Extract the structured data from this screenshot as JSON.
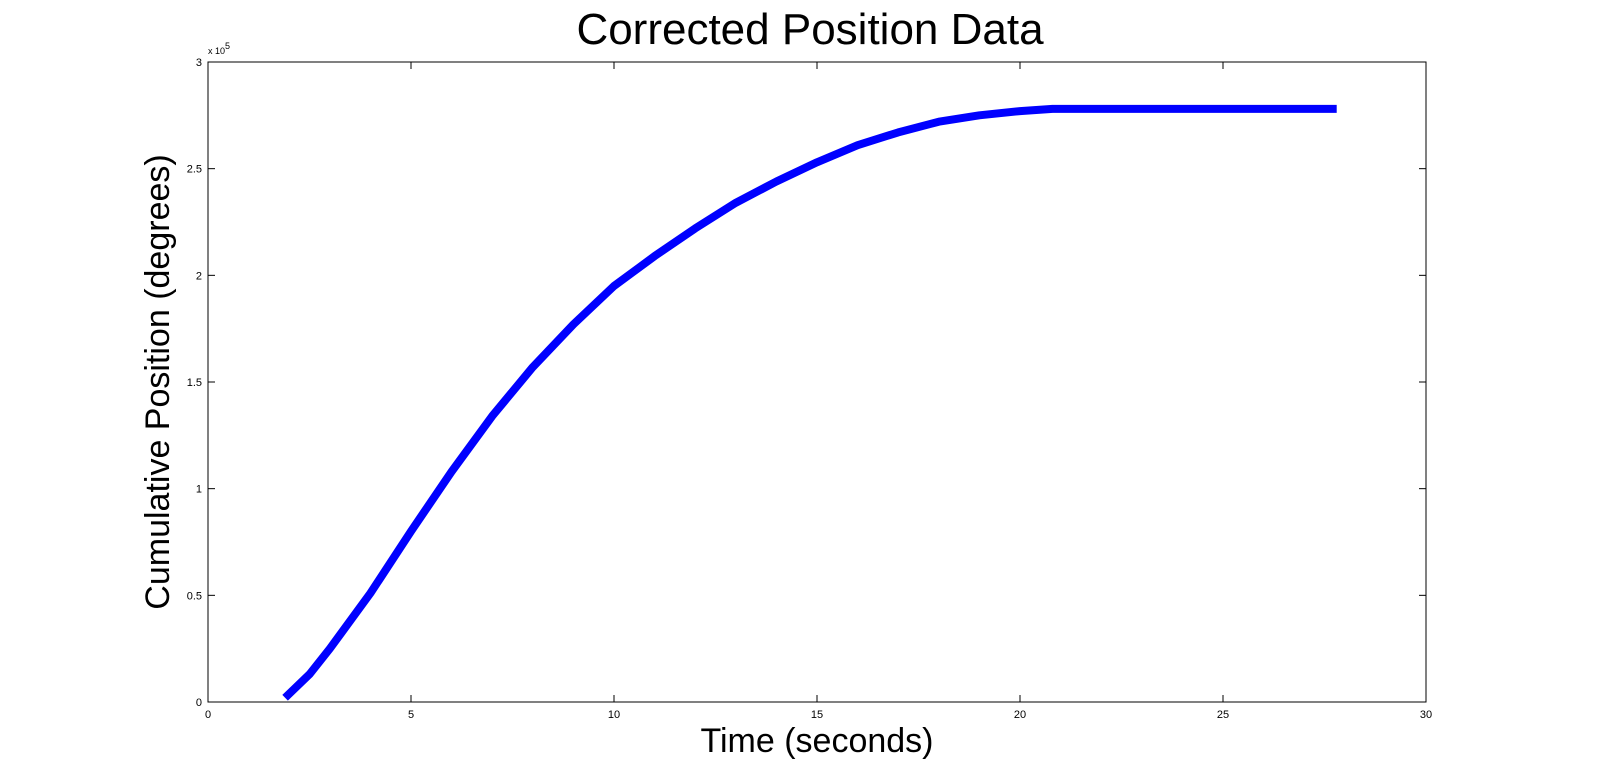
{
  "chart_data": {
    "type": "line",
    "title": "Corrected Position Data",
    "xlabel": "Time (seconds)",
    "ylabel": "Cumulative Position (degrees)",
    "xlim": [
      0,
      30
    ],
    "ylim": [
      0,
      3
    ],
    "y_multiplier_label": "x 10",
    "y_multiplier_exponent": "5",
    "grid": false,
    "x_ticks": [
      "0",
      "5",
      "10",
      "15",
      "20",
      "25",
      "30"
    ],
    "y_ticks": [
      "0",
      "0.5",
      "1",
      "1.5",
      "2",
      "2.5",
      "3"
    ],
    "series": [
      {
        "color": "#0000ff",
        "x": [
          1.9,
          2.5,
          3.0,
          4.0,
          5.0,
          6.0,
          7.0,
          8.0,
          9.0,
          10.0,
          11.0,
          12.0,
          13.0,
          14.0,
          15.0,
          16.0,
          17.0,
          18.0,
          19.0,
          20.0,
          20.8,
          21.5,
          23.0,
          25.0,
          27.8
        ],
        "y": [
          0.02,
          0.13,
          0.25,
          0.51,
          0.8,
          1.08,
          1.34,
          1.57,
          1.77,
          1.95,
          2.09,
          2.22,
          2.34,
          2.44,
          2.53,
          2.61,
          2.67,
          2.72,
          2.75,
          2.77,
          2.78,
          2.78,
          2.78,
          2.78,
          2.78
        ]
      }
    ]
  }
}
